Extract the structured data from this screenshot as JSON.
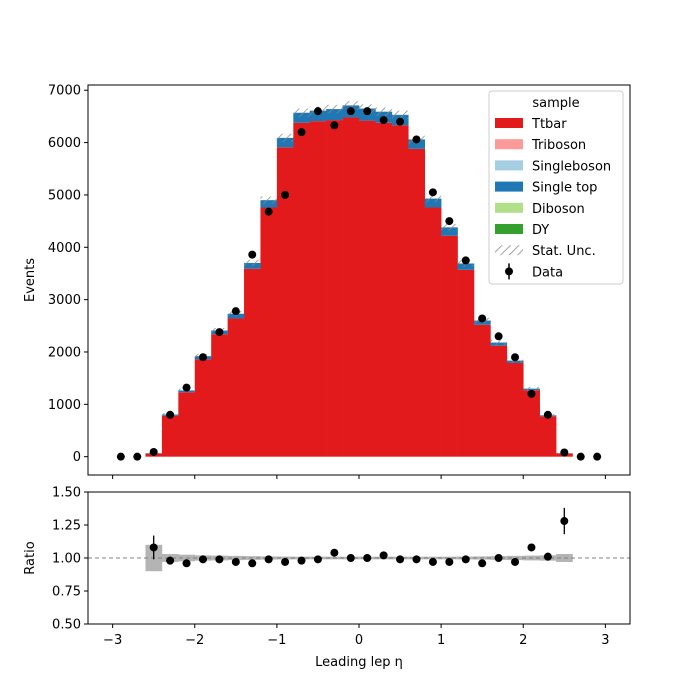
{
  "chart_data": {
    "type": "bar",
    "stacked": true,
    "x_label": "Leading lep η",
    "xlim": [
      -3.3,
      3.3
    ],
    "x_ticks": [
      -3,
      -2,
      -1,
      0,
      1,
      2,
      3
    ],
    "bin_edges": [
      -2.6,
      -2.4,
      -2.2,
      -2.0,
      -1.8,
      -1.6,
      -1.4,
      -1.2,
      -1.0,
      -0.8,
      -0.6,
      -0.4,
      -0.2,
      0.0,
      0.2,
      0.4,
      0.6,
      0.8,
      1.0,
      1.2,
      1.4,
      1.6,
      1.8,
      2.0,
      2.2,
      2.4,
      2.6
    ],
    "main_panel": {
      "y_label": "Events",
      "ylim": [
        -350,
        7100
      ],
      "y_ticks": [
        0,
        1000,
        2000,
        3000,
        4000,
        5000,
        6000,
        7000
      ],
      "legend_title": "sample",
      "legend_position": "top-right",
      "series": [
        {
          "name": "Ttbar",
          "color": "#e31a1c",
          "values": [
            60,
            780,
            1230,
            1860,
            2340,
            2640,
            3590,
            4760,
            5910,
            6380,
            6410,
            6430,
            6480,
            6420,
            6380,
            6330,
            5880,
            4760,
            4220,
            3570,
            2520,
            2120,
            1790,
            1270,
            770,
            60
          ]
        },
        {
          "name": "Triboson",
          "color": "#fb9a99",
          "values": [
            0,
            0,
            0,
            0,
            0,
            0,
            0,
            0,
            0,
            0,
            0,
            0,
            0,
            0,
            0,
            0,
            0,
            0,
            0,
            0,
            0,
            0,
            0,
            0,
            0,
            0
          ]
        },
        {
          "name": "Singleboson",
          "color": "#a6cee3",
          "values": [
            0,
            0,
            0,
            0,
            0,
            0,
            0,
            0,
            0,
            0,
            0,
            0,
            0,
            0,
            0,
            0,
            0,
            0,
            0,
            0,
            0,
            0,
            0,
            0,
            0,
            0
          ]
        },
        {
          "name": "Single top",
          "color": "#1f78b4",
          "values": [
            5,
            25,
            35,
            60,
            70,
            90,
            110,
            140,
            180,
            190,
            200,
            210,
            230,
            230,
            210,
            200,
            180,
            170,
            160,
            120,
            80,
            60,
            45,
            30,
            20,
            5
          ]
        },
        {
          "name": "Diboson",
          "color": "#b2df8a",
          "values": [
            0,
            0,
            0,
            0,
            0,
            0,
            0,
            0,
            0,
            0,
            0,
            0,
            0,
            0,
            0,
            0,
            0,
            0,
            0,
            0,
            0,
            0,
            0,
            0,
            0,
            0
          ]
        },
        {
          "name": "DY",
          "color": "#33a02c",
          "values": [
            0,
            0,
            0,
            0,
            0,
            0,
            0,
            0,
            0,
            0,
            0,
            0,
            0,
            0,
            0,
            0,
            0,
            0,
            0,
            0,
            0,
            0,
            0,
            0,
            0,
            0
          ]
        }
      ],
      "stat_unc_label": "Stat. Unc.",
      "data_label": "Data",
      "data": {
        "x": [
          -2.9,
          -2.7,
          -2.5,
          -2.3,
          -2.1,
          -1.9,
          -1.7,
          -1.5,
          -1.3,
          -1.1,
          -0.9,
          -0.7,
          -0.5,
          -0.3,
          -0.1,
          0.1,
          0.3,
          0.5,
          0.7,
          0.9,
          1.1,
          1.3,
          1.5,
          1.7,
          1.9,
          2.1,
          2.3,
          2.5,
          2.7,
          2.9
        ],
        "y": [
          0,
          0,
          90,
          800,
          1320,
          1900,
          2380,
          2780,
          3860,
          4680,
          5000,
          6200,
          6600,
          6330,
          6600,
          6600,
          6430,
          6400,
          6060,
          5050,
          4500,
          3750,
          2640,
          2300,
          1900,
          1200,
          800,
          80,
          0,
          0
        ]
      }
    },
    "ratio_panel": {
      "y_label": "Ratio",
      "ylim": [
        0.5,
        1.5
      ],
      "y_ticks": [
        0.5,
        0.75,
        1.0,
        1.25,
        1.5
      ],
      "y_tick_labels": [
        "0.50",
        "0.75",
        "1.00",
        "1.25",
        "1.50"
      ],
      "reference_line": 1.0,
      "unc_band_halfwidth": [
        0.1,
        0.03,
        0.025,
        0.02,
        0.018,
        0.016,
        0.014,
        0.012,
        0.011,
        0.01,
        0.01,
        0.01,
        0.01,
        0.01,
        0.01,
        0.01,
        0.01,
        0.01,
        0.01,
        0.011,
        0.012,
        0.014,
        0.016,
        0.018,
        0.02,
        0.03
      ],
      "points": {
        "x": [
          -2.5,
          -2.3,
          -2.1,
          -1.9,
          -1.7,
          -1.5,
          -1.3,
          -1.1,
          -0.9,
          -0.7,
          -0.5,
          -0.3,
          -0.1,
          0.1,
          0.3,
          0.5,
          0.7,
          0.9,
          1.1,
          1.3,
          1.5,
          1.7,
          1.9,
          2.1,
          2.3,
          2.5
        ],
        "y": [
          1.08,
          0.98,
          0.96,
          0.99,
          0.99,
          0.97,
          0.96,
          0.99,
          0.97,
          0.98,
          0.99,
          1.04,
          1.0,
          1.0,
          1.02,
          0.99,
          0.99,
          0.97,
          0.97,
          0.99,
          0.96,
          1.0,
          0.97,
          1.08,
          1.01,
          1.28
        ],
        "yerr": [
          0.09,
          0.03,
          0.02,
          0.02,
          0.02,
          0.015,
          0.015,
          0.01,
          0.01,
          0.01,
          0.01,
          0.01,
          0.01,
          0.01,
          0.01,
          0.01,
          0.01,
          0.01,
          0.01,
          0.015,
          0.015,
          0.02,
          0.02,
          0.025,
          0.03,
          0.1
        ]
      }
    }
  }
}
